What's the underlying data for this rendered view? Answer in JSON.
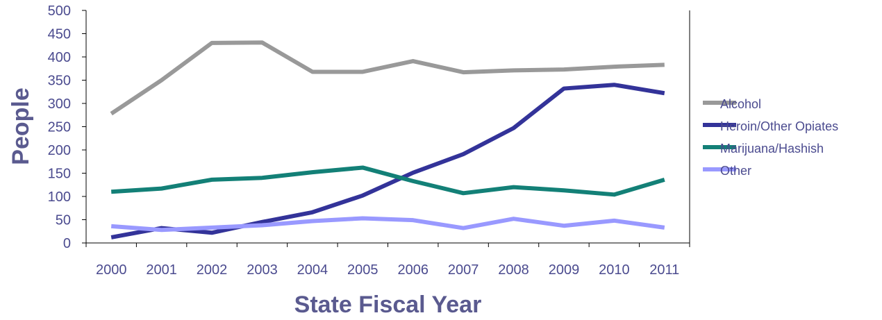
{
  "chart_data": {
    "type": "line",
    "title": "",
    "xlabel": "State Fiscal Year",
    "ylabel": "People",
    "categories": [
      "2000",
      "2001",
      "2002",
      "2003",
      "2004",
      "2005",
      "2006",
      "2007",
      "2008",
      "2009",
      "2010",
      "2011"
    ],
    "ylim": [
      0,
      500
    ],
    "yticks": [
      0,
      50,
      100,
      150,
      200,
      250,
      300,
      350,
      400,
      450,
      500
    ],
    "grid": false,
    "legend_position": "right",
    "series": [
      {
        "name": "Alcohol",
        "color": "#999999",
        "values": [
          278,
          350,
          430,
          431,
          368,
          368,
          391,
          367,
          371,
          373,
          379,
          383
        ]
      },
      {
        "name": "Heroin/Other Opiates",
        "color": "#333399",
        "values": [
          12,
          32,
          22,
          45,
          66,
          102,
          151,
          191,
          247,
          332,
          340,
          322
        ]
      },
      {
        "name": "Marijuana/Hashish",
        "color": "#138077",
        "values": [
          110,
          117,
          136,
          140,
          152,
          162,
          133,
          107,
          120,
          113,
          104,
          136
        ]
      },
      {
        "name": "Other",
        "color": "#9999ff",
        "values": [
          36,
          28,
          33,
          38,
          47,
          53,
          49,
          32,
          52,
          37,
          48,
          33
        ]
      }
    ]
  }
}
